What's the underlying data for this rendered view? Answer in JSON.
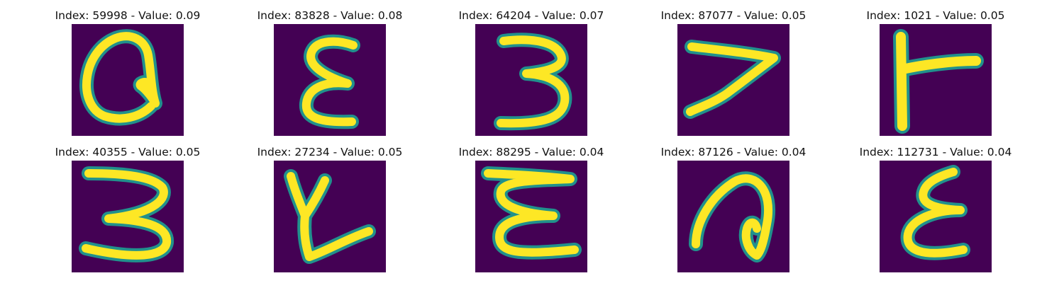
{
  "colors": {
    "background": "#440154",
    "stroke_core": "#fde725",
    "stroke_edge": "#21918c",
    "title_text": "#111111"
  },
  "colormap": "viridis",
  "grid": {
    "rows": 2,
    "cols": 5
  },
  "panels": [
    {
      "title": "Index: 59998 - Value: 0.09",
      "glyph": "a-like"
    },
    {
      "title": "Index: 83828 - Value: 0.08",
      "glyph": "epsilon-like"
    },
    {
      "title": "Index: 64204 - Value: 0.07",
      "glyph": "three-like"
    },
    {
      "title": "Index: 87077 - Value: 0.05",
      "glyph": "seven-like"
    },
    {
      "title": "Index: 1021 - Value: 0.05",
      "glyph": "t-like"
    },
    {
      "title": "Index: 40355 - Value: 0.05",
      "glyph": "three-like"
    },
    {
      "title": "Index: 27234 - Value: 0.05",
      "glyph": "y-like"
    },
    {
      "title": "Index: 88295 - Value: 0.04",
      "glyph": "epsilon-like"
    },
    {
      "title": "Index: 87126 - Value: 0.04",
      "glyph": "a-like"
    },
    {
      "title": "Index: 112731 - Value: 0.04",
      "glyph": "epsilon-like"
    }
  ]
}
